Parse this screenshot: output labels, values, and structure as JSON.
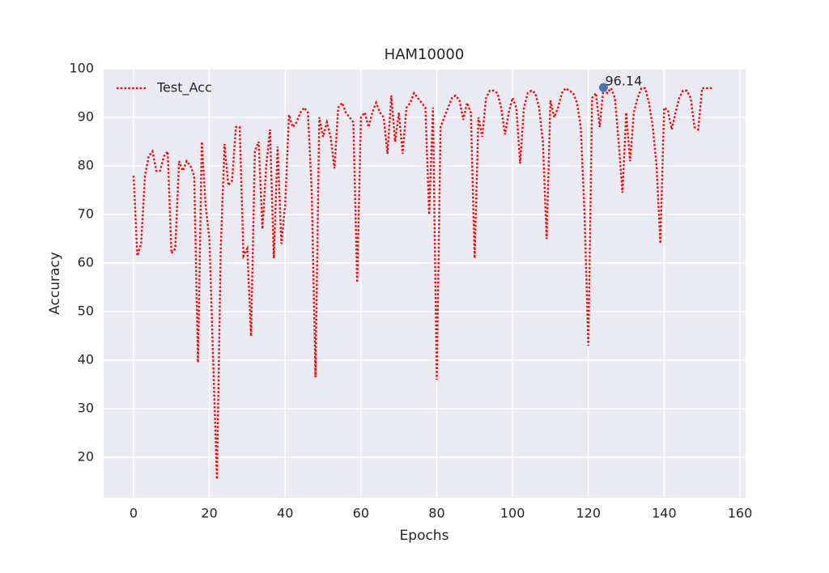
{
  "chart_data": {
    "type": "line",
    "title": "HAM10000",
    "xlabel": "Epochs",
    "ylabel": "Accuracy",
    "x": [
      0,
      1,
      2,
      3,
      4,
      5,
      6,
      7,
      8,
      9,
      10,
      11,
      12,
      13,
      14,
      15,
      16,
      17,
      18,
      19,
      20,
      21,
      22,
      23,
      24,
      25,
      26,
      27,
      28,
      29,
      30,
      31,
      32,
      33,
      34,
      35,
      36,
      37,
      38,
      39,
      40,
      41,
      42,
      43,
      44,
      45,
      46,
      47,
      48,
      49,
      50,
      51,
      52,
      53,
      54,
      55,
      56,
      57,
      58,
      59,
      60,
      61,
      62,
      63,
      64,
      65,
      66,
      67,
      68,
      69,
      70,
      71,
      72,
      73,
      74,
      75,
      76,
      77,
      78,
      79,
      80,
      81,
      82,
      83,
      84,
      85,
      86,
      87,
      88,
      89,
      90,
      91,
      92,
      93,
      94,
      95,
      96,
      97,
      98,
      99,
      100,
      101,
      102,
      103,
      104,
      105,
      106,
      107,
      108,
      109,
      110,
      111,
      112,
      113,
      114,
      115,
      116,
      117,
      118,
      119,
      120,
      121,
      122,
      123,
      124,
      125,
      126,
      127,
      128,
      129,
      130,
      131,
      132,
      133,
      134,
      135,
      136,
      137,
      138,
      139,
      140,
      141,
      142,
      143,
      144,
      145,
      146,
      147,
      148,
      149,
      150,
      151,
      152,
      153
    ],
    "series": [
      {
        "name": "Test_Acc",
        "color": "#ff0000",
        "values": [
          78,
          61.5,
          64,
          78,
          82,
          83,
          79,
          79,
          82,
          83,
          62,
          63,
          81,
          79,
          81,
          80,
          78,
          39.5,
          85,
          72,
          65,
          40,
          15.5,
          63,
          84.5,
          76,
          77,
          88,
          88,
          61.5,
          63,
          45,
          83,
          85,
          67,
          80,
          87.5,
          61,
          84,
          64,
          72,
          90.5,
          88,
          89,
          91,
          92,
          91,
          75,
          36.5,
          90,
          86,
          89,
          86,
          79.5,
          92,
          93,
          91,
          90,
          89,
          56,
          90,
          91,
          88,
          91,
          93,
          91,
          90,
          82.5,
          94.5,
          85,
          91,
          82.5,
          92,
          93,
          95,
          94,
          93,
          92,
          70,
          92,
          36,
          88,
          90,
          92,
          94,
          94.5,
          93.5,
          89.5,
          93,
          91,
          61,
          90,
          86,
          94,
          95.5,
          95.5,
          95,
          92,
          86.5,
          91,
          94,
          92,
          80.5,
          92,
          95,
          95.5,
          95,
          92,
          85,
          65,
          93.5,
          90,
          92,
          95,
          96,
          95.5,
          95,
          93,
          88,
          70,
          43,
          94,
          95,
          88,
          96.14,
          95,
          96,
          94,
          85,
          74.5,
          91,
          81,
          91,
          94,
          96,
          96,
          93,
          88,
          80,
          64,
          92,
          91.5,
          87.5,
          91,
          94,
          95.5,
          95.5,
          94,
          88,
          87.5,
          96,
          96,
          96,
          96
        ]
      }
    ],
    "annotation": {
      "x": 124,
      "y": 96.14
    },
    "xlim": [
      -7.9,
      161.5
    ],
    "ylim": [
      11.7,
      100
    ],
    "xticks": [
      0,
      20,
      40,
      60,
      80,
      100,
      120,
      140,
      160
    ],
    "yticks": [
      20,
      30,
      40,
      50,
      60,
      70,
      80,
      90,
      100
    ],
    "grid": true,
    "legend": "upper left"
  }
}
